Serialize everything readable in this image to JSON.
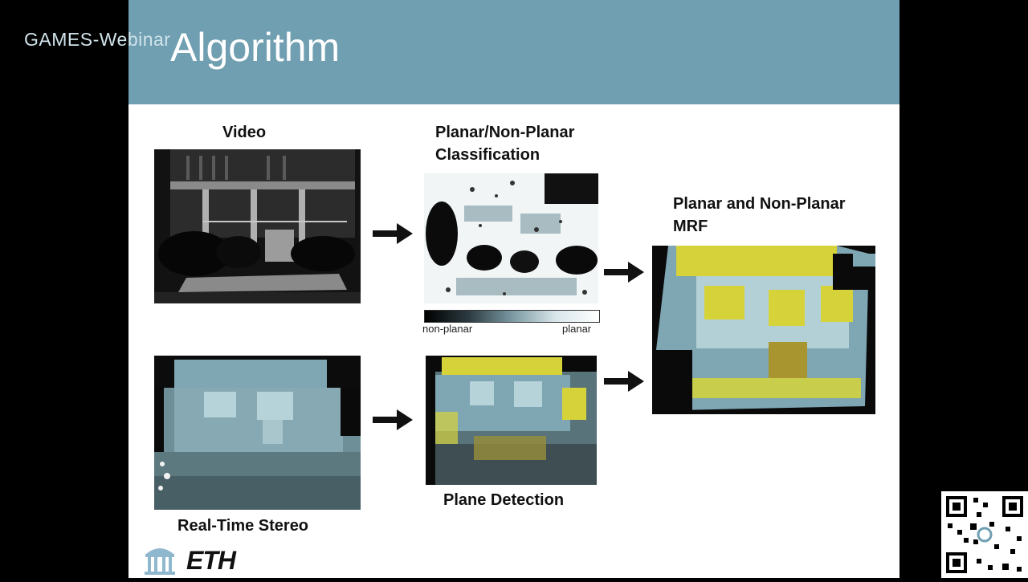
{
  "watermark": "GAMES-Webinar",
  "slide": {
    "title": "Algorithm",
    "labels": {
      "video": "Video",
      "classification_line1": "Planar/Non-Planar",
      "classification_line2": "Classification",
      "mrf_line1": "Planar and Non-Planar",
      "mrf_line2": "MRF",
      "stereo": "Real-Time Stereo",
      "plane_detection": "Plane Detection"
    },
    "legend": {
      "left": "non-planar",
      "right": "planar"
    },
    "logos": {
      "eth": "ETH"
    }
  },
  "colors": {
    "header": "#6f9fb1",
    "planar_yellow": "#d6d33a",
    "depth_blue": "#7fa6b3",
    "dark": "#0a0a0a"
  }
}
